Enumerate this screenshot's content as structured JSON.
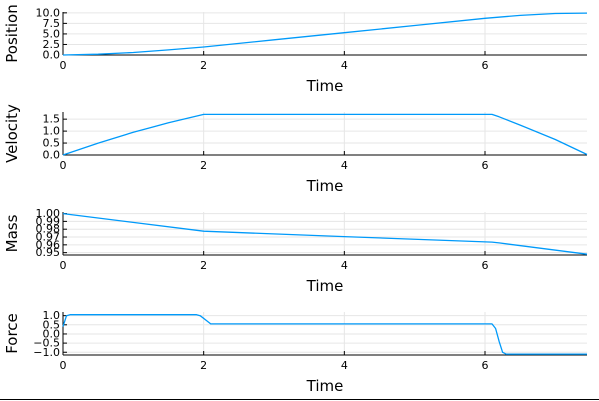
{
  "chart_data": [
    {
      "type": "line",
      "xlabel": "Time",
      "ylabel": "Position",
      "xlim": [
        0,
        7.45
      ],
      "ylim": [
        0,
        10.2
      ],
      "xticks": [
        0,
        2,
        4,
        6
      ],
      "xtick_labels": [
        "0",
        "2",
        "4",
        "6"
      ],
      "yticks": [
        0,
        2.5,
        5,
        7.5,
        10
      ],
      "ytick_labels": [
        "0.0",
        "2.5",
        "5.0",
        "7.5",
        "10.0"
      ],
      "grid": true,
      "legend": "none",
      "series": [
        {
          "color": "#009AFA",
          "x": [
            0,
            0.5,
            1,
            1.5,
            2,
            3,
            4,
            5,
            6,
            6.5,
            7,
            7.45
          ],
          "values": [
            0,
            0.2,
            0.6,
            1.2,
            1.9,
            3.6,
            5.3,
            7.0,
            8.7,
            9.4,
            9.85,
            9.95
          ]
        }
      ]
    },
    {
      "type": "line",
      "xlabel": "Time",
      "ylabel": "Velocity",
      "xlim": [
        0,
        7.45
      ],
      "ylim": [
        0,
        1.8
      ],
      "xticks": [
        0,
        2,
        4,
        6
      ],
      "xtick_labels": [
        "0",
        "2",
        "4",
        "6"
      ],
      "yticks": [
        0,
        0.5,
        1.0,
        1.5
      ],
      "ytick_labels": [
        "0.0",
        "0.5",
        "1.0",
        "1.5"
      ],
      "grid": true,
      "legend": "none",
      "series": [
        {
          "color": "#009AFA",
          "x": [
            0,
            0.5,
            1,
            1.5,
            2,
            4,
            6.1,
            6.2,
            6.5,
            7,
            7.45
          ],
          "values": [
            0,
            0.5,
            0.95,
            1.35,
            1.7,
            1.7,
            1.7,
            1.6,
            1.25,
            0.65,
            0.02
          ]
        }
      ]
    },
    {
      "type": "line",
      "xlabel": "Time",
      "ylabel": "Mass",
      "xlim": [
        0,
        7.45
      ],
      "ylim": [
        0.947,
        1.002
      ],
      "xticks": [
        0,
        2,
        4,
        6
      ],
      "xtick_labels": [
        "0",
        "2",
        "4",
        "6"
      ],
      "yticks": [
        0.95,
        0.96,
        0.97,
        0.98,
        0.99,
        1.0
      ],
      "ytick_labels": [
        "0.95",
        "0.96",
        "0.97",
        "0.98",
        "0.99",
        "1.00"
      ],
      "grid": true,
      "legend": "none",
      "series": [
        {
          "color": "#009AFA",
          "x": [
            0,
            2,
            4,
            6.1,
            6.2,
            7.45
          ],
          "values": [
            1.0,
            0.9775,
            0.9705,
            0.9635,
            0.9625,
            0.948
          ]
        }
      ]
    },
    {
      "type": "line",
      "xlabel": "Time",
      "ylabel": "Force",
      "xlim": [
        0,
        7.45
      ],
      "ylim": [
        -1.15,
        1.2
      ],
      "xticks": [
        0,
        2,
        4,
        6
      ],
      "xtick_labels": [
        "0",
        "2",
        "4",
        "6"
      ],
      "yticks": [
        -1.0,
        -0.5,
        0.0,
        0.5,
        1.0
      ],
      "ytick_labels": [
        "−1.0",
        "−0.5",
        "0.0",
        "0.5",
        "1.0"
      ],
      "grid": true,
      "legend": "none",
      "series": [
        {
          "color": "#009AFA",
          "x": [
            0,
            0.05,
            0.1,
            1.9,
            1.95,
            2.05,
            2.1,
            6.1,
            6.15,
            6.2,
            6.25,
            6.3,
            7.45
          ],
          "values": [
            0.4,
            1.0,
            1.05,
            1.05,
            1.0,
            0.7,
            0.55,
            0.55,
            0.3,
            -0.4,
            -1.0,
            -1.1,
            -1.1
          ]
        }
      ]
    }
  ]
}
